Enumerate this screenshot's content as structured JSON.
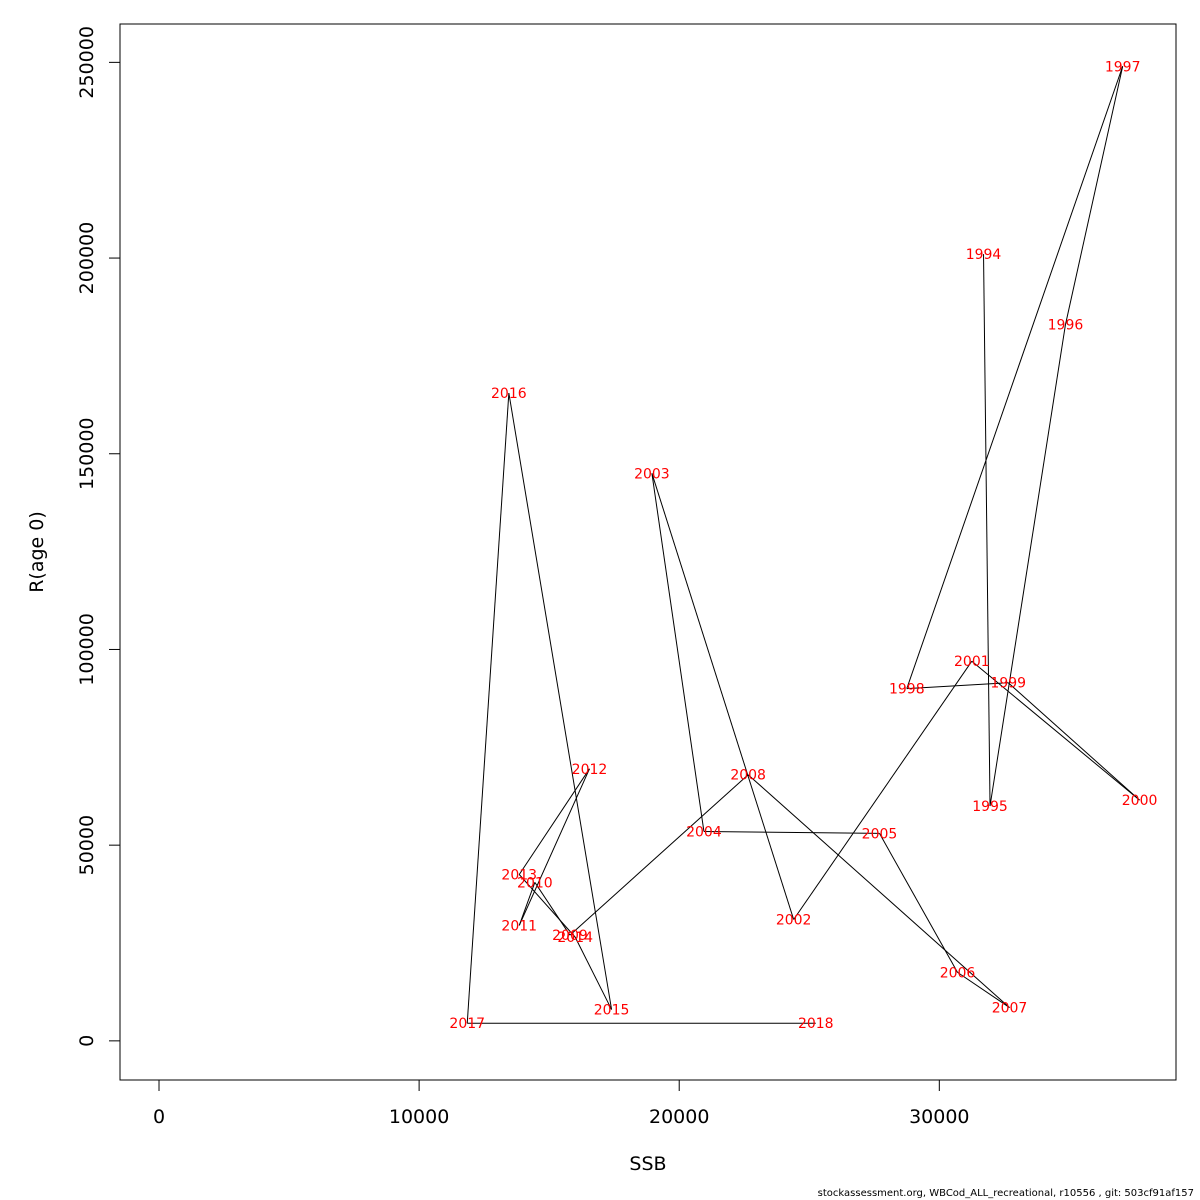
{
  "chart_data": {
    "type": "line",
    "title": "",
    "xlabel": "SSB",
    "ylabel": "R(age 0)",
    "xlim": [
      -1500,
      39100
    ],
    "ylim": [
      -10000,
      259800
    ],
    "x_ticks": [
      0,
      10000,
      20000,
      30000
    ],
    "y_ticks": [
      0,
      50000,
      100000,
      150000,
      200000,
      250000
    ],
    "x_tick_labels": [
      "0",
      "10000",
      "20000",
      "30000"
    ],
    "y_tick_labels": [
      "0",
      "50000",
      "100000",
      "150000",
      "200000",
      "250000"
    ],
    "grid": false,
    "line_color": "#000000",
    "label_color": "#ff0000",
    "points": [
      {
        "label": "1994",
        "x": 31700,
        "y": 201000
      },
      {
        "label": "1995",
        "x": 31950,
        "y": 60000
      },
      {
        "label": "1996",
        "x": 34850,
        "y": 183000
      },
      {
        "label": "1997",
        "x": 37050,
        "y": 249000
      },
      {
        "label": "1998",
        "x": 28750,
        "y": 90000
      },
      {
        "label": "1999",
        "x": 32650,
        "y": 91500
      },
      {
        "label": "2000",
        "x": 37700,
        "y": 61500
      },
      {
        "label": "2001",
        "x": 31250,
        "y": 97000
      },
      {
        "label": "2002",
        "x": 24400,
        "y": 31000
      },
      {
        "label": "2003",
        "x": 18950,
        "y": 145000
      },
      {
        "label": "2004",
        "x": 20950,
        "y": 53500
      },
      {
        "label": "2005",
        "x": 27700,
        "y": 53000
      },
      {
        "label": "2006",
        "x": 30700,
        "y": 17500
      },
      {
        "label": "2007",
        "x": 32700,
        "y": 8500
      },
      {
        "label": "2008",
        "x": 22650,
        "y": 68000
      },
      {
        "label": "2009",
        "x": 15800,
        "y": 27000
      },
      {
        "label": "2010",
        "x": 14450,
        "y": 40500
      },
      {
        "label": "2011",
        "x": 13850,
        "y": 29500
      },
      {
        "label": "2012",
        "x": 16550,
        "y": 69500
      },
      {
        "label": "2013",
        "x": 13850,
        "y": 42500
      },
      {
        "label": "2014",
        "x": 16000,
        "y": 26500
      },
      {
        "label": "2015",
        "x": 17400,
        "y": 8000
      },
      {
        "label": "2016",
        "x": 13450,
        "y": 165500
      },
      {
        "label": "2017",
        "x": 11850,
        "y": 4500
      },
      {
        "label": "2018",
        "x": 25250,
        "y": 4500
      }
    ]
  },
  "footer": "stockassessment.org, WBCod_ALL_recreational, r10556 , git: 503cf91af157"
}
